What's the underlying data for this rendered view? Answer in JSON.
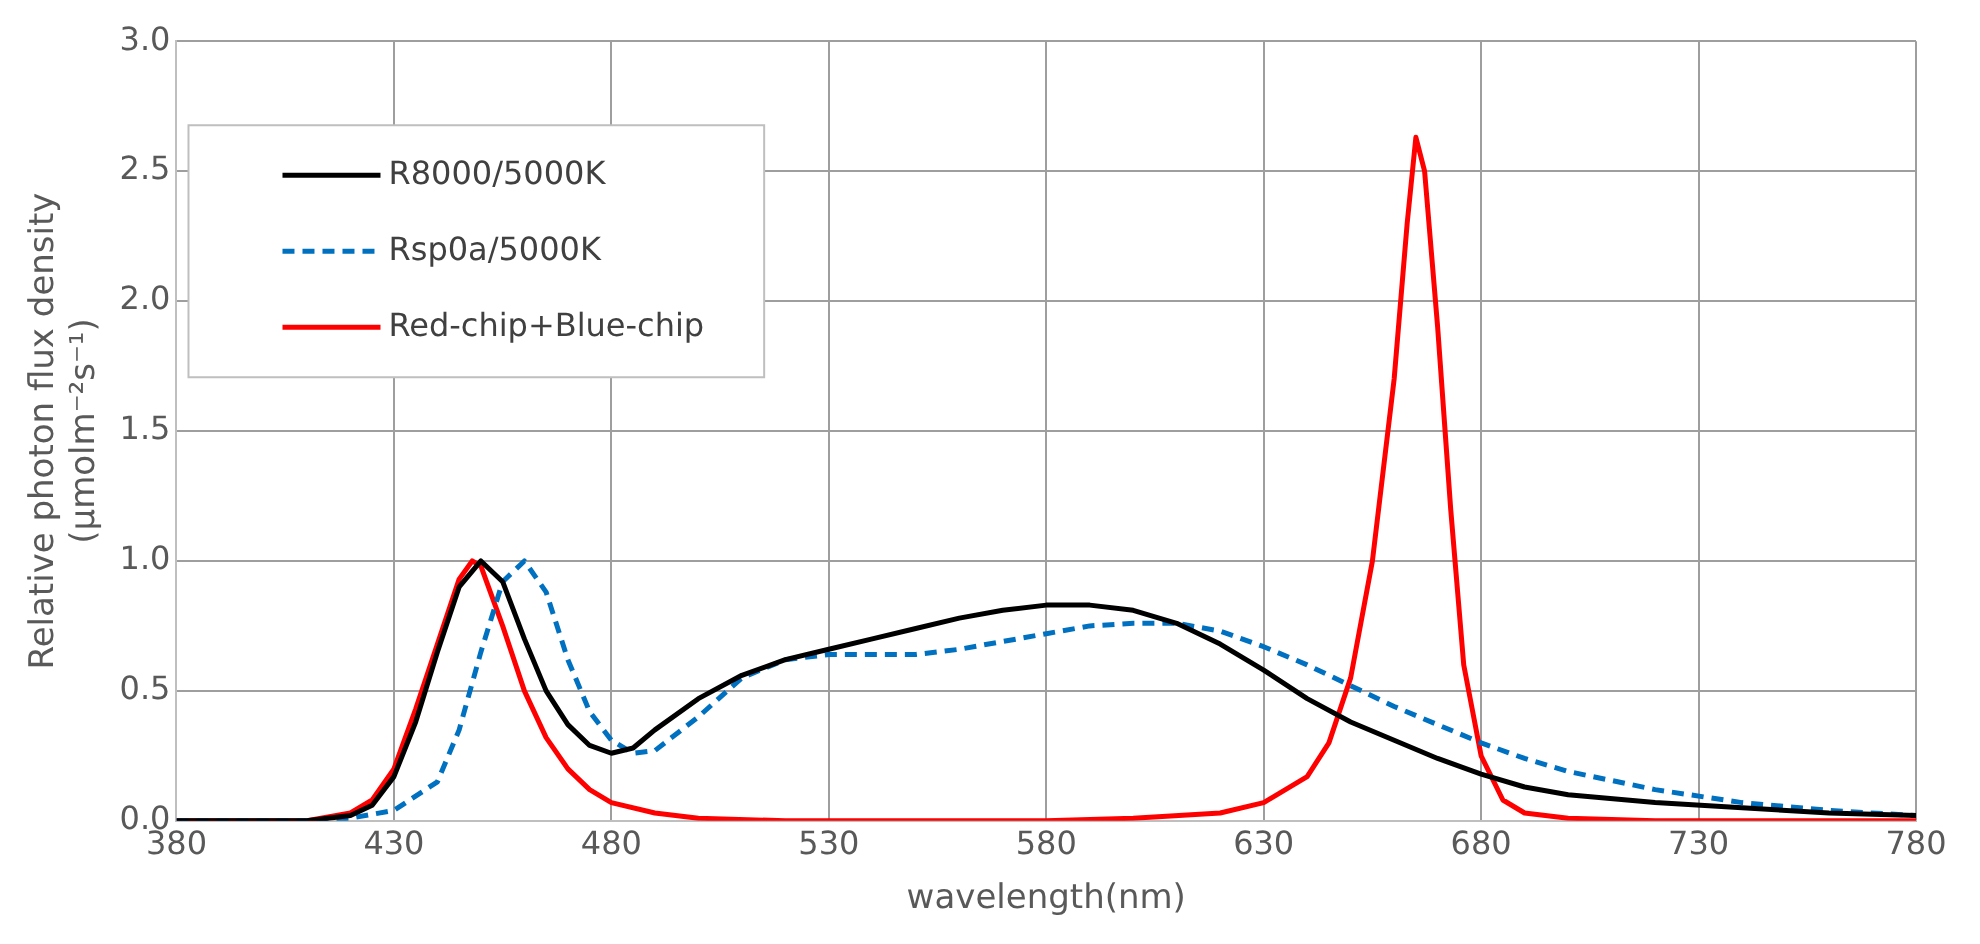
{
  "chart_data": {
    "type": "line",
    "xlabel": "wavelength(nm)",
    "ylabel": "Relative photon flux density\n(μmolm⁻²s⁻¹)",
    "xlim": [
      380,
      780
    ],
    "xticks": [
      380,
      430,
      480,
      530,
      580,
      630,
      680,
      730,
      780
    ],
    "ylim": [
      0,
      3
    ],
    "yticks": [
      {
        "value": 0,
        "label": "0.0"
      },
      {
        "value": 0.5,
        "label": "0.5"
      },
      {
        "value": 1,
        "label": "1.0"
      },
      {
        "value": 1.5,
        "label": "1.5"
      },
      {
        "value": 2,
        "label": "2.0"
      },
      {
        "value": 2.5,
        "label": "2.5"
      },
      {
        "value": 3,
        "label": "3.0"
      }
    ],
    "grid": true,
    "legend": "top left",
    "marker": "none",
    "series": [
      {
        "name": "R8000/5000K",
        "color": "#000000",
        "line_style": "solid",
        "x": [
          380,
          410,
          420,
          425,
          430,
          435,
          440,
          445,
          450,
          455,
          460,
          465,
          470,
          475,
          480,
          485,
          490,
          500,
          510,
          520,
          530,
          540,
          550,
          560,
          570,
          580,
          590,
          600,
          610,
          620,
          630,
          640,
          650,
          660,
          670,
          680,
          690,
          700,
          720,
          740,
          760,
          780
        ],
        "values": [
          0,
          0,
          0.02,
          0.06,
          0.17,
          0.38,
          0.65,
          0.9,
          1.0,
          0.92,
          0.7,
          0.5,
          0.37,
          0.29,
          0.26,
          0.28,
          0.35,
          0.47,
          0.56,
          0.62,
          0.66,
          0.7,
          0.74,
          0.78,
          0.81,
          0.83,
          0.83,
          0.81,
          0.76,
          0.68,
          0.58,
          0.47,
          0.38,
          0.31,
          0.24,
          0.18,
          0.13,
          0.1,
          0.07,
          0.05,
          0.03,
          0.02
        ]
      },
      {
        "name": "Rsp0a/5000K",
        "color": "#0070c0",
        "line_style": "dashed",
        "x": [
          380,
          410,
          420,
          430,
          440,
          445,
          450,
          455,
          460,
          465,
          470,
          475,
          480,
          485,
          490,
          500,
          510,
          520,
          530,
          540,
          550,
          560,
          570,
          580,
          590,
          600,
          610,
          620,
          630,
          640,
          650,
          660,
          670,
          680,
          690,
          700,
          720,
          740,
          760,
          780
        ],
        "values": [
          0,
          0,
          0.01,
          0.04,
          0.15,
          0.35,
          0.65,
          0.92,
          1.0,
          0.88,
          0.62,
          0.42,
          0.31,
          0.26,
          0.27,
          0.4,
          0.55,
          0.62,
          0.64,
          0.64,
          0.64,
          0.66,
          0.69,
          0.72,
          0.75,
          0.76,
          0.76,
          0.73,
          0.67,
          0.6,
          0.52,
          0.44,
          0.37,
          0.3,
          0.24,
          0.19,
          0.12,
          0.07,
          0.04,
          0.02
        ]
      },
      {
        "name": "Red-chip+Blue-chip",
        "color": "#ff0000",
        "line_style": "solid",
        "x": [
          380,
          410,
          420,
          425,
          430,
          435,
          440,
          445,
          448,
          450,
          455,
          460,
          465,
          470,
          475,
          480,
          490,
          500,
          520,
          580,
          600,
          620,
          630,
          640,
          645,
          650,
          655,
          660,
          663,
          665,
          667,
          670,
          673,
          676,
          680,
          685,
          690,
          700,
          720,
          780
        ],
        "values": [
          0,
          0,
          0.03,
          0.08,
          0.2,
          0.43,
          0.68,
          0.93,
          1.0,
          0.98,
          0.75,
          0.5,
          0.32,
          0.2,
          0.12,
          0.07,
          0.03,
          0.01,
          0,
          0,
          0.01,
          0.03,
          0.07,
          0.17,
          0.3,
          0.55,
          1.0,
          1.7,
          2.3,
          2.63,
          2.5,
          1.9,
          1.2,
          0.6,
          0.25,
          0.08,
          0.03,
          0.01,
          0,
          0
        ]
      }
    ]
  }
}
